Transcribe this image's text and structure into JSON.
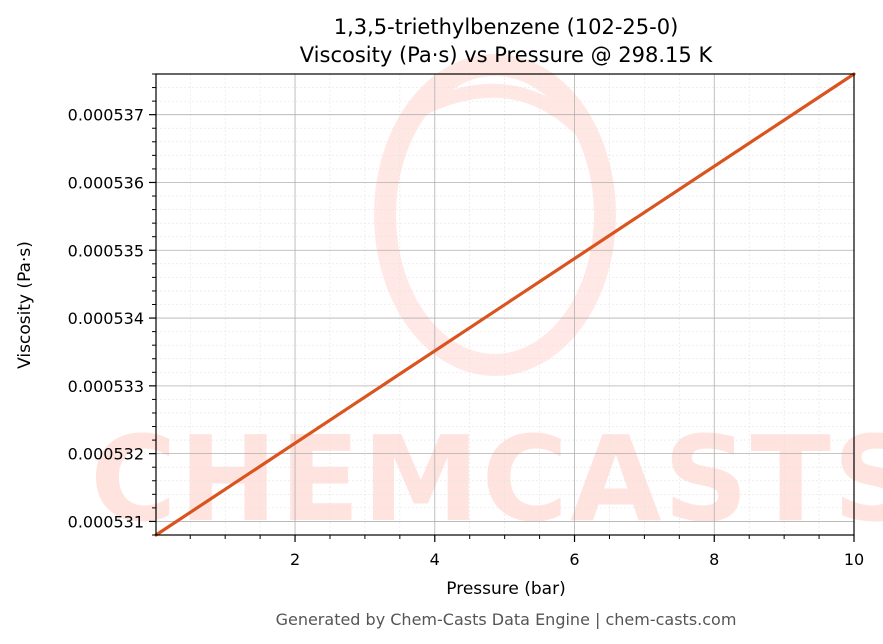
{
  "chart_data": {
    "type": "line",
    "title": "1,3,5-triethylbenzene (102-25-0)",
    "subtitle": "Viscosity (Pa·s) vs Pressure @ 298.15 K",
    "xlabel": "Pressure (bar)",
    "ylabel": "Viscosity (Pa·s)",
    "xlim": [
      0.01,
      10
    ],
    "ylim": [
      0.0005308,
      0.0005376
    ],
    "x_ticks": [
      2,
      4,
      6,
      8,
      10
    ],
    "x_tick_labels": [
      "2",
      "4",
      "6",
      "8",
      "10"
    ],
    "y_ticks": [
      0.000531,
      0.000532,
      0.000533,
      0.000534,
      0.000535,
      0.000536,
      0.000537
    ],
    "y_tick_labels": [
      "0.000531",
      "0.000532",
      "0.000533",
      "0.000534",
      "0.000535",
      "0.000536",
      "0.000537"
    ],
    "grid": true,
    "series": [
      {
        "color": "#d9541e",
        "x": [
          0.01,
          10
        ],
        "y": [
          0.0005308,
          0.0005376
        ]
      }
    ]
  },
  "watermark": {
    "text": "CHEMCASTS",
    "color": "#ffe3df"
  },
  "footer": "Generated by Chem-Casts Data Engine | chem-casts.com"
}
